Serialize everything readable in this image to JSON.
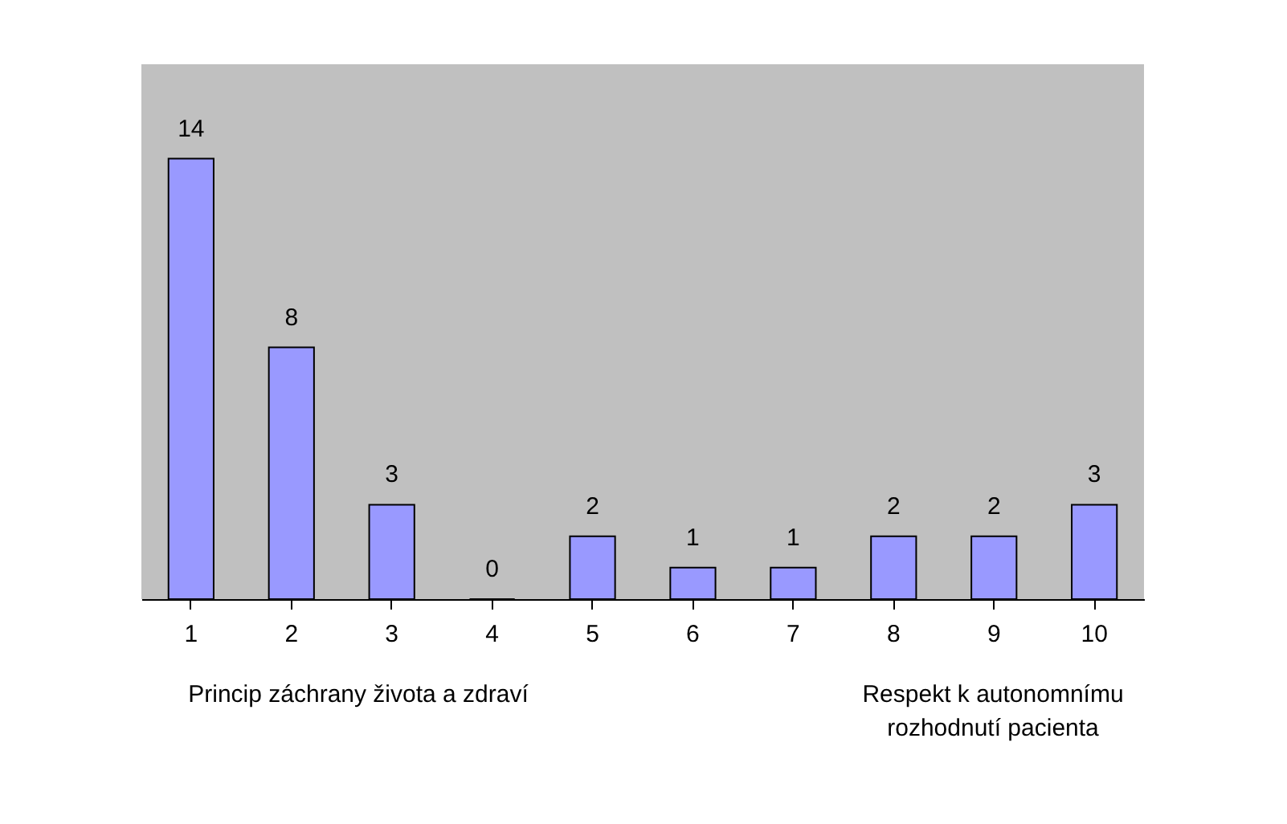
{
  "chart_data": {
    "type": "bar",
    "categories": [
      "1",
      "2",
      "3",
      "4",
      "5",
      "6",
      "7",
      "8",
      "9",
      "10"
    ],
    "values": [
      14,
      8,
      3,
      0,
      2,
      1,
      1,
      2,
      2,
      3
    ],
    "color": "#9999ff",
    "ylim": [
      0,
      17
    ],
    "data_labels": true,
    "tick_labels": "x",
    "grid": false,
    "annotations": [
      "Princip záchrany života a zdraví",
      "Respekt k autonomnímu\nrozhodnutí pacienta"
    ]
  }
}
